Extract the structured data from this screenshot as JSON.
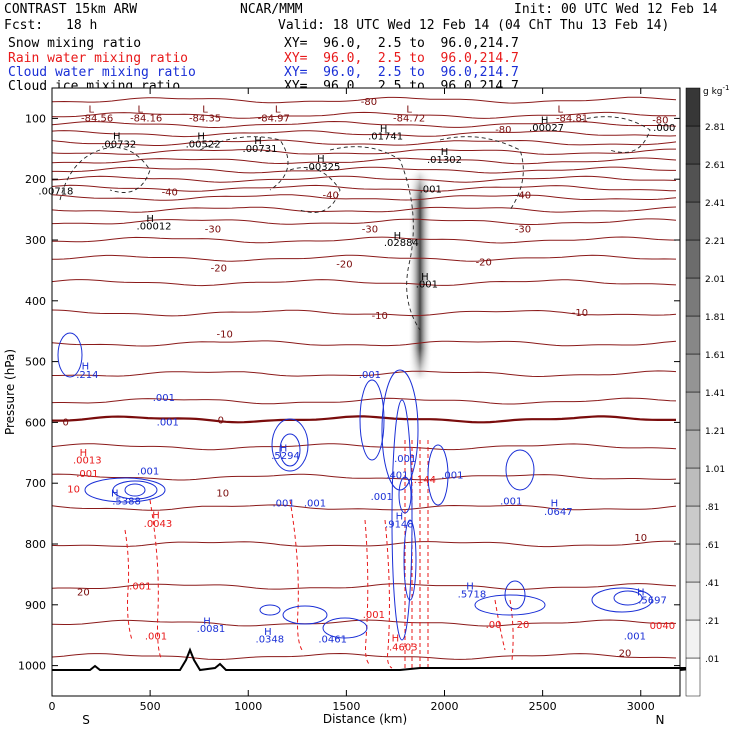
{
  "header": {
    "model": "CONTRAST 15km ARW",
    "org": "NCAR/MMM",
    "init": "Init: 00 UTC Wed 12 Feb 14",
    "fcst_label": "Fcst:",
    "fcst_value": "18 h",
    "valid": "Valid: 18 UTC Wed 12 Feb 14 (04 ChT Thu 13 Feb 14)",
    "fields": [
      {
        "name": "Snow mixing ratio",
        "xy": "XY=  96.0,  2.5 to  96.0,214.7",
        "color": "#000000"
      },
      {
        "name": "Rain water mixing ratio",
        "xy": "XY=  96.0,  2.5 to  96.0,214.7",
        "color": "#e8191a"
      },
      {
        "name": "Cloud water mixing ratio",
        "xy": "XY=  96.0,  2.5 to  96.0,214.7",
        "color": "#1a2fd6"
      },
      {
        "name": "Cloud ice mixing ratio",
        "xy": "XY=  96.0,  2.5 to  96.0,214.7",
        "color": "#000000"
      }
    ]
  },
  "chart_data": {
    "type": "heatmap",
    "xlabel": "Distance (km)",
    "ylabel": "Pressure (hPa)",
    "xlim": [
      0,
      3200
    ],
    "ylim": [
      1050,
      50
    ],
    "xticks": [
      0,
      500,
      1000,
      1500,
      2000,
      2500,
      3000
    ],
    "yticks": [
      100,
      200,
      300,
      400,
      500,
      600,
      700,
      800,
      900,
      1000
    ],
    "x_end_labels": {
      "left": "S",
      "right": "N"
    },
    "colorbar": {
      "unit_label": "g kg",
      "unit_exp": "-1",
      "levels": [
        ".01",
        ".21",
        ".41",
        ".61",
        ".81",
        "1.01",
        "1.21",
        "1.41",
        "1.61",
        "1.81",
        "2.01",
        "2.21",
        "2.41",
        "2.61",
        "2.81"
      ]
    },
    "temperature_contours": [
      {
        "label": "-80",
        "p": 110
      },
      {
        "label": "-40",
        "p": 210
      },
      {
        "label": "-30",
        "p": 250
      },
      {
        "label": "-20",
        "p": 300
      },
      {
        "label": "-10",
        "p": 420
      },
      {
        "label": "0",
        "p": 595
      },
      {
        "label": "10",
        "p": 725
      },
      {
        "label": "20",
        "p": 930
      }
    ],
    "annotations": [
      {
        "text": "L",
        "x": 200,
        "p": 90,
        "color": "#7a0c0c"
      },
      {
        "text": "-84.56",
        "x": 230,
        "p": 105,
        "color": "#7a0c0c"
      },
      {
        "text": "L",
        "x": 450,
        "p": 90,
        "color": "#7a0c0c"
      },
      {
        "text": "-84.16",
        "x": 480,
        "p": 105,
        "color": "#7a0c0c"
      },
      {
        "text": "L",
        "x": 780,
        "p": 90,
        "color": "#7a0c0c"
      },
      {
        "text": "-84.35",
        "x": 780,
        "p": 105,
        "color": "#7a0c0c"
      },
      {
        "text": "L",
        "x": 1150,
        "p": 90,
        "color": "#7a0c0c"
      },
      {
        "text": "-84.97",
        "x": 1130,
        "p": 105,
        "color": "#7a0c0c"
      },
      {
        "text": "-80",
        "x": 1615,
        "p": 78,
        "color": "#7a0c0c"
      },
      {
        "text": "L",
        "x": 1820,
        "p": 90,
        "color": "#7a0c0c"
      },
      {
        "text": "-84.72",
        "x": 1820,
        "p": 105,
        "color": "#7a0c0c"
      },
      {
        "text": "-80",
        "x": 2300,
        "p": 124,
        "color": "#7a0c0c"
      },
      {
        "text": "L",
        "x": 2590,
        "p": 90,
        "color": "#7a0c0c"
      },
      {
        "text": "-84.81",
        "x": 2650,
        "p": 105,
        "color": "#7a0c0c"
      },
      {
        "text": "-80",
        "x": 3100,
        "p": 108,
        "color": "#7a0c0c"
      },
      {
        "text": "H",
        "x": 330,
        "p": 135,
        "color": "#000000"
      },
      {
        "text": ".00732",
        "x": 340,
        "p": 148,
        "color": "#000000"
      },
      {
        "text": "H",
        "x": 760,
        "p": 135,
        "color": "#000000"
      },
      {
        "text": ".00522",
        "x": 770,
        "p": 148,
        "color": "#000000"
      },
      {
        "text": "H",
        "x": 1050,
        "p": 142,
        "color": "#000000"
      },
      {
        "text": ".00731",
        "x": 1060,
        "p": 155,
        "color": "#000000"
      },
      {
        "text": "H",
        "x": 1690,
        "p": 122,
        "color": "#000000"
      },
      {
        "text": ".01741",
        "x": 1700,
        "p": 135,
        "color": "#000000"
      },
      {
        "text": "H",
        "x": 2510,
        "p": 108,
        "color": "#000000"
      },
      {
        "text": ".00027",
        "x": 2520,
        "p": 121,
        "color": "#000000"
      },
      {
        "text": ".000",
        "x": 3120,
        "p": 121,
        "color": "#000000"
      },
      {
        "text": "H",
        "x": 1370,
        "p": 172,
        "color": "#000000"
      },
      {
        "text": ".00325",
        "x": 1380,
        "p": 185,
        "color": "#000000"
      },
      {
        "text": "H",
        "x": 2000,
        "p": 160,
        "color": "#000000"
      },
      {
        "text": ".01302",
        "x": 2000,
        "p": 173,
        "color": "#000000"
      },
      {
        "text": ".00718",
        "x": 20,
        "p": 225,
        "color": "#000000"
      },
      {
        "text": ".001",
        "x": 1930,
        "p": 222,
        "color": "#000000"
      },
      {
        "text": "H",
        "x": 500,
        "p": 270,
        "color": "#000000"
      },
      {
        "text": ".00012",
        "x": 520,
        "p": 283,
        "color": "#000000"
      },
      {
        "text": "-40",
        "x": 600,
        "p": 227,
        "color": "#7a0c0c"
      },
      {
        "text": "-40",
        "x": 1420,
        "p": 232,
        "color": "#7a0c0c"
      },
      {
        "text": "-40",
        "x": 2400,
        "p": 232,
        "color": "#7a0c0c"
      },
      {
        "text": "-30",
        "x": 820,
        "p": 288,
        "color": "#7a0c0c"
      },
      {
        "text": "-30",
        "x": 1620,
        "p": 288,
        "color": "#7a0c0c"
      },
      {
        "text": "-30",
        "x": 2400,
        "p": 288,
        "color": "#7a0c0c"
      },
      {
        "text": "H",
        "x": 1760,
        "p": 298,
        "color": "#000000"
      },
      {
        "text": ".02884",
        "x": 1780,
        "p": 310,
        "color": "#000000"
      },
      {
        "text": "H",
        "x": 1900,
        "p": 366,
        "color": "#000000"
      },
      {
        "text": ".001",
        "x": 1910,
        "p": 378,
        "color": "#000000"
      },
      {
        "text": "-20",
        "x": 850,
        "p": 352,
        "color": "#7a0c0c"
      },
      {
        "text": "-20",
        "x": 1490,
        "p": 345,
        "color": "#7a0c0c"
      },
      {
        "text": "-20",
        "x": 2200,
        "p": 342,
        "color": "#7a0c0c"
      },
      {
        "text": "-10",
        "x": 880,
        "p": 460,
        "color": "#7a0c0c"
      },
      {
        "text": "-10",
        "x": 1670,
        "p": 430,
        "color": "#7a0c0c"
      },
      {
        "text": "-10",
        "x": 2690,
        "p": 425,
        "color": "#7a0c0c"
      },
      {
        "text": "H",
        "x": 170,
        "p": 513,
        "color": "#1a2fd6"
      },
      {
        "text": ".214",
        "x": 180,
        "p": 527,
        "color": "#1a2fd6"
      },
      {
        "text": ".001",
        "x": 1620,
        "p": 527,
        "color": "#1a2fd6"
      },
      {
        "text": ".001",
        "x": 570,
        "p": 565,
        "color": "#1a2fd6"
      },
      {
        "text": ".001",
        "x": 590,
        "p": 605,
        "color": "#1a2fd6"
      },
      {
        "text": "0",
        "x": 70,
        "p": 605,
        "color": "#7a0c0c"
      },
      {
        "text": "0",
        "x": 860,
        "p": 602,
        "color": "#7a0c0c"
      },
      {
        "text": "H",
        "x": 160,
        "p": 655,
        "color": "#e8191a"
      },
      {
        "text": ".0013",
        "x": 180,
        "p": 668,
        "color": "#e8191a"
      },
      {
        "text": "H",
        "x": 1180,
        "p": 648,
        "color": "#1a2fd6"
      },
      {
        "text": ".5294",
        "x": 1190,
        "p": 660,
        "color": "#1a2fd6"
      },
      {
        "text": ".001",
        "x": 1800,
        "p": 665,
        "color": "#1a2fd6"
      },
      {
        "text": ".001",
        "x": 490,
        "p": 686,
        "color": "#1a2fd6"
      },
      {
        "text": ".001",
        "x": 180,
        "p": 690,
        "color": "#e8191a"
      },
      {
        "text": ".401",
        "x": 1760,
        "p": 692,
        "color": "#1a2fd6"
      },
      {
        "text": ".144",
        "x": 1900,
        "p": 700,
        "color": "#e8191a"
      },
      {
        "text": ".001",
        "x": 2040,
        "p": 692,
        "color": "#1a2fd6"
      },
      {
        "text": "10",
        "x": 110,
        "p": 715,
        "color": "#e8191a"
      },
      {
        "text": "H",
        "x": 320,
        "p": 722,
        "color": "#1a2fd6"
      },
      {
        "text": ".5388",
        "x": 380,
        "p": 735,
        "color": "#1a2fd6"
      },
      {
        "text": "10",
        "x": 870,
        "p": 722,
        "color": "#7a0c0c"
      },
      {
        "text": ".001",
        "x": 1180,
        "p": 738,
        "color": "#1a2fd6"
      },
      {
        "text": ".001",
        "x": 1340,
        "p": 738,
        "color": "#1a2fd6"
      },
      {
        "text": ".001",
        "x": 1680,
        "p": 728,
        "color": "#1a2fd6"
      },
      {
        "text": "H",
        "x": 530,
        "p": 758,
        "color": "#e8191a"
      },
      {
        "text": ".0043",
        "x": 540,
        "p": 772,
        "color": "#e8191a"
      },
      {
        "text": "H",
        "x": 1770,
        "p": 760,
        "color": "#1a2fd6"
      },
      {
        "text": ".9148",
        "x": 1770,
        "p": 773,
        "color": "#1a2fd6"
      },
      {
        "text": ".001",
        "x": 2340,
        "p": 735,
        "color": "#1a2fd6"
      },
      {
        "text": "H",
        "x": 2560,
        "p": 738,
        "color": "#1a2fd6"
      },
      {
        "text": ".0647",
        "x": 2580,
        "p": 752,
        "color": "#1a2fd6"
      },
      {
        "text": "10",
        "x": 3000,
        "p": 795,
        "color": "#7a0c0c"
      },
      {
        "text": ".001",
        "x": 450,
        "p": 875,
        "color": "#e8191a"
      },
      {
        "text": "20",
        "x": 160,
        "p": 885,
        "color": "#7a0c0c"
      },
      {
        "text": "H",
        "x": 2130,
        "p": 875,
        "color": "#1a2fd6"
      },
      {
        "text": ".5718",
        "x": 2140,
        "p": 888,
        "color": "#1a2fd6"
      },
      {
        "text": "H",
        "x": 3000,
        "p": 885,
        "color": "#1a2fd6"
      },
      {
        "text": ".5697",
        "x": 3060,
        "p": 898,
        "color": "#1a2fd6"
      },
      {
        "text": "H",
        "x": 790,
        "p": 932,
        "color": "#1a2fd6"
      },
      {
        "text": ".0081",
        "x": 810,
        "p": 945,
        "color": "#1a2fd6"
      },
      {
        "text": "H",
        "x": 1100,
        "p": 950,
        "color": "#1a2fd6"
      },
      {
        "text": ".0348",
        "x": 1110,
        "p": 962,
        "color": "#1a2fd6"
      },
      {
        "text": ".0461",
        "x": 1430,
        "p": 962,
        "color": "#1a2fd6"
      },
      {
        "text": ".001",
        "x": 1640,
        "p": 922,
        "color": "#e8191a"
      },
      {
        "text": ".001",
        "x": 530,
        "p": 957,
        "color": "#e8191a"
      },
      {
        "text": ".00",
        "x": 2250,
        "p": 938,
        "color": "#e8191a"
      },
      {
        "text": "20",
        "x": 2400,
        "p": 938,
        "color": "#e8191a"
      },
      {
        "text": ".001",
        "x": 2970,
        "p": 957,
        "color": "#1a2fd6"
      },
      {
        "text": "0040",
        "x": 3110,
        "p": 940,
        "color": "#e8191a"
      },
      {
        "text": "H",
        "x": 1750,
        "p": 960,
        "color": "#e8191a"
      },
      {
        "text": ".4603",
        "x": 1790,
        "p": 975,
        "color": "#e8191a"
      },
      {
        "text": "20",
        "x": 2920,
        "p": 985,
        "color": "#7a0c0c"
      }
    ]
  }
}
